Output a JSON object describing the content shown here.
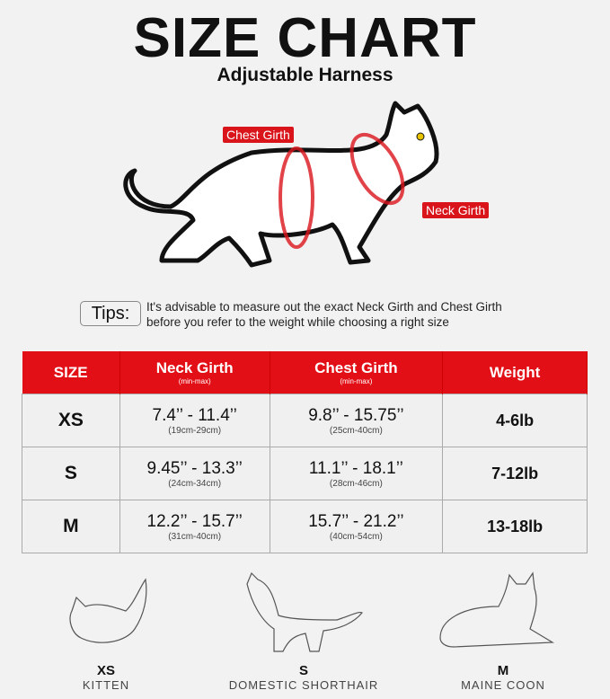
{
  "header": {
    "title": "SIZE CHART",
    "subtitle": "Adjustable Harness"
  },
  "diagram": {
    "chest_label": "Chest Girth",
    "neck_label": "Neck Girth",
    "accent": "#d9141b"
  },
  "tips": {
    "label": "Tips:",
    "line1": "It's advisable to measure out the exact Neck Girth and Chest Girth",
    "line2": "before you refer to the weight while choosing a right size"
  },
  "table": {
    "headers": [
      {
        "main": "SIZE",
        "sub": ""
      },
      {
        "main": "Neck Girth",
        "sub": "(min-max)"
      },
      {
        "main": "Chest Girth",
        "sub": "(min-max)"
      },
      {
        "main": "Weight",
        "sub": ""
      }
    ],
    "rows": [
      {
        "size": "XS",
        "neck": "7.4’’ - 11.4’’",
        "neck_cm": "(19cm-29cm)",
        "chest": "9.8’’ - 15.75’’",
        "chest_cm": "(25cm-40cm)",
        "weight": "4-6lb"
      },
      {
        "size": "S",
        "neck": "9.45’’ - 13.3’’",
        "neck_cm": "(24cm-34cm)",
        "chest": "11.1’’ - 18.1’’",
        "chest_cm": "(28cm-46cm)",
        "weight": "7-12lb"
      },
      {
        "size": "M",
        "neck": "12.2’’ - 15.7’’",
        "neck_cm": "(31cm-40cm)",
        "chest": "15.7’’ - 21.2’’",
        "chest_cm": "(40cm-54cm)",
        "weight": "13-18lb"
      }
    ],
    "header_color": "#e30f16"
  },
  "breeds": [
    {
      "size": "XS",
      "name": "KITTEN"
    },
    {
      "size": "S",
      "name": "DOMESTIC SHORTHAIR"
    },
    {
      "size": "M",
      "name": "MAINE COON"
    }
  ]
}
